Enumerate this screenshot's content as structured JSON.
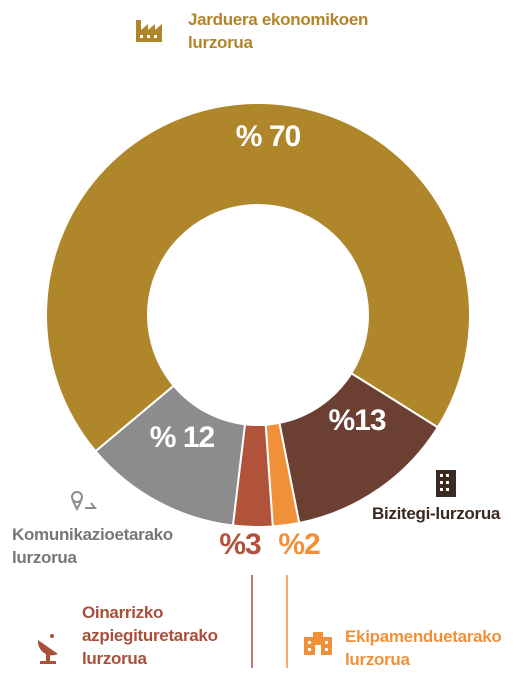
{
  "chart_data": {
    "type": "donut",
    "categories": [
      "Jarduera ekonomikoen lurzorua",
      "Bizitegi-lurzorua",
      "Ekipamenduetarako lurzorua",
      "Oinarrizko azpiegituretarako lurzorua",
      "Komunikazioetarako lurzorua"
    ],
    "values": [
      70,
      13,
      2,
      3,
      12
    ],
    "value_labels": [
      "% 70",
      "%13",
      "%2",
      "%3",
      "% 12"
    ],
    "colors": [
      "#b0862a",
      "#6b3f32",
      "#f0913a",
      "#b0533a",
      "#8c8c8c"
    ]
  }
}
